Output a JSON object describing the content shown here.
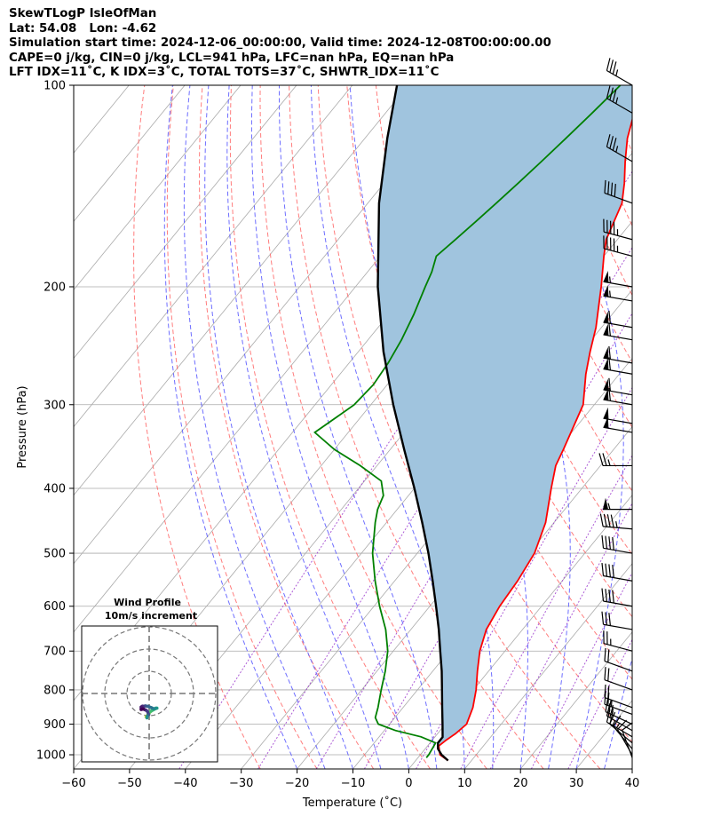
{
  "header": {
    "line1": "SkewTLogP IsleOfMan",
    "line2": "Lat: 54.08   Lon: -4.62",
    "line3": "Simulation start time: 2024-12-06_00:00:00, Valid time: 2024-12-08T00:00:00.00",
    "line4": "CAPE=0 j/kg, CIN=0 j/kg, LCL=941 hPa, LFC=nan hPa, EQ=nan hPa",
    "line5": "LFT IDX=11˚C, K IDX=3˚C, TOTAL TOTS=37˚C, SHWTR_IDX=11˚C"
  },
  "chart_data": {
    "type": "line",
    "subtype": "skew-t log-p",
    "xlabel": "Temperature (˚C)",
    "ylabel": "Pressure (hPa)",
    "xlim": [
      -60,
      40
    ],
    "ylim": [
      1050,
      100
    ],
    "y_scale": "log",
    "grid": true,
    "x_ticks": [
      "−60",
      "−50",
      "−40",
      "−30",
      "−20",
      "−10",
      "0",
      "10",
      "20",
      "30",
      "40"
    ],
    "y_ticks": [
      "100",
      "200",
      "300",
      "400",
      "500",
      "600",
      "700",
      "800",
      "900",
      "1000"
    ],
    "colors": {
      "temperature": "#ff0000",
      "dewpoint": "#008000",
      "parcel": "#000000",
      "shade": "#a0c4de",
      "dry_adiabat": "#ff6666",
      "moist_adiabat": "#5555ff",
      "mixing_ratio": "#9933cc",
      "isotherm": "#aaaaaa"
    },
    "series": [
      {
        "key": "temperature",
        "pressure": [
          1020,
          1000,
          970,
          950,
          930,
          900,
          850,
          800,
          750,
          700,
          650,
          600,
          550,
          500,
          450,
          400,
          370,
          350,
          300,
          270,
          250,
          230,
          200,
          180,
          170,
          150,
          140,
          130,
          120,
          110,
          100
        ],
        "values": [
          5.8,
          3.5,
          2.0,
          2.5,
          3.2,
          3.8,
          2.5,
          0.5,
          -2.0,
          -4.5,
          -6.5,
          -7.5,
          -8.0,
          -9.0,
          -11.5,
          -15.5,
          -18.0,
          -19.0,
          -22.0,
          -26.0,
          -28.5,
          -31.0,
          -36.0,
          -40.0,
          -42.0,
          -44.5,
          -47.0,
          -50.0,
          -53.0,
          -55.5,
          -58.5
        ]
      },
      {
        "key": "dewpoint",
        "pressure": [
          1010,
          1000,
          960,
          940,
          920,
          900,
          880,
          850,
          800,
          750,
          700,
          650,
          600,
          550,
          500,
          450,
          430,
          410,
          390,
          370,
          350,
          330,
          310,
          300,
          280,
          260,
          240,
          220,
          200,
          190,
          180,
          170,
          160,
          150,
          140,
          130,
          120,
          110,
          100
        ],
        "values": [
          1.5,
          1.5,
          1.0,
          -2.5,
          -8.0,
          -12.0,
          -13.5,
          -14.5,
          -16.5,
          -18.5,
          -21.0,
          -24.5,
          -29.0,
          -33.5,
          -38.0,
          -42.0,
          -43.5,
          -44.5,
          -47.0,
          -53.0,
          -60.0,
          -66.0,
          -64.0,
          -63.0,
          -62.5,
          -63.0,
          -64.0,
          -65.5,
          -67.5,
          -68.5,
          -70.0,
          -69.0,
          -68.0,
          -67.0,
          -66.0,
          -65.0,
          -64.0,
          -63.0,
          -62.0
        ]
      },
      {
        "key": "parcel",
        "pressure": [
          1020,
          1000,
          980,
          960,
          941,
          900,
          850,
          800,
          750,
          700,
          650,
          600,
          550,
          500,
          450,
          400,
          350,
          300,
          250,
          200,
          150,
          120,
          100
        ],
        "values": [
          5.8,
          3.8,
          2.3,
          1.4,
          1.4,
          -0.5,
          -3.0,
          -5.6,
          -8.4,
          -11.6,
          -15.0,
          -18.9,
          -23.2,
          -28.0,
          -33.6,
          -40.0,
          -47.5,
          -56.0,
          -65.5,
          -76.0,
          -88.0,
          -96.0,
          -102.0
        ]
      }
    ],
    "wind_barbs": {
      "pressure": [
        100,
        110,
        130,
        150,
        170,
        180,
        200,
        210,
        230,
        240,
        260,
        270,
        290,
        300,
        320,
        330,
        370,
        430,
        460,
        500,
        550,
        600,
        650,
        700,
        750,
        800,
        850,
        870,
        900,
        920,
        940,
        960,
        980,
        1000,
        1010
      ],
      "speed_kt": [
        35,
        35,
        35,
        40,
        45,
        45,
        55,
        55,
        60,
        60,
        60,
        60,
        60,
        60,
        50,
        50,
        25,
        55,
        45,
        40,
        40,
        40,
        30,
        25,
        20,
        20,
        20,
        25,
        25,
        20,
        20,
        15,
        15,
        10,
        10
      ],
      "direction_deg": [
        300,
        300,
        300,
        290,
        285,
        285,
        280,
        280,
        280,
        280,
        280,
        280,
        280,
        280,
        280,
        280,
        270,
        270,
        275,
        280,
        280,
        280,
        280,
        285,
        290,
        290,
        290,
        290,
        295,
        300,
        300,
        310,
        320,
        330,
        340
      ]
    },
    "inset": {
      "title_line1": "Wind Profile",
      "title_line2": "10m/s increment",
      "hodograph_u": [
        -1.4,
        -0.9,
        -0.2,
        0.8,
        2.5,
        3.5,
        3.0,
        2.0,
        1.0,
        -0.5,
        -1.8,
        -2.5,
        -3.0,
        -3.6,
        -3.6,
        -2.6,
        -1.5,
        -0.8,
        -0.2,
        -0.8,
        -1.0,
        -1.0
      ],
      "hodograph_v": [
        -10.5,
        -10.0,
        -9.0,
        -8.0,
        -7.0,
        -6.6,
        -6.6,
        -6.9,
        -6.4,
        -5.8,
        -5.6,
        -5.8,
        -5.7,
        -6.1,
        -7.2,
        -7.0,
        -7.5,
        -8.0,
        -9.5,
        -10.2,
        -10.6,
        -11.0
      ]
    }
  }
}
